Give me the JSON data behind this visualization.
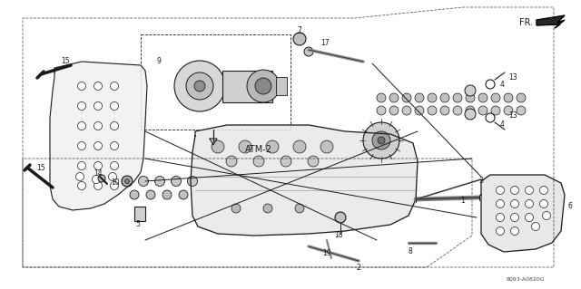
{
  "bg_color": "#ffffff",
  "line_color": "#1a1a1a",
  "figure_width": 6.4,
  "figure_height": 3.19,
  "dpi": 100,
  "part_code": "8093-A0820G",
  "fr_label": "FR.",
  "atm_label": "ATM-2",
  "img_path": null
}
